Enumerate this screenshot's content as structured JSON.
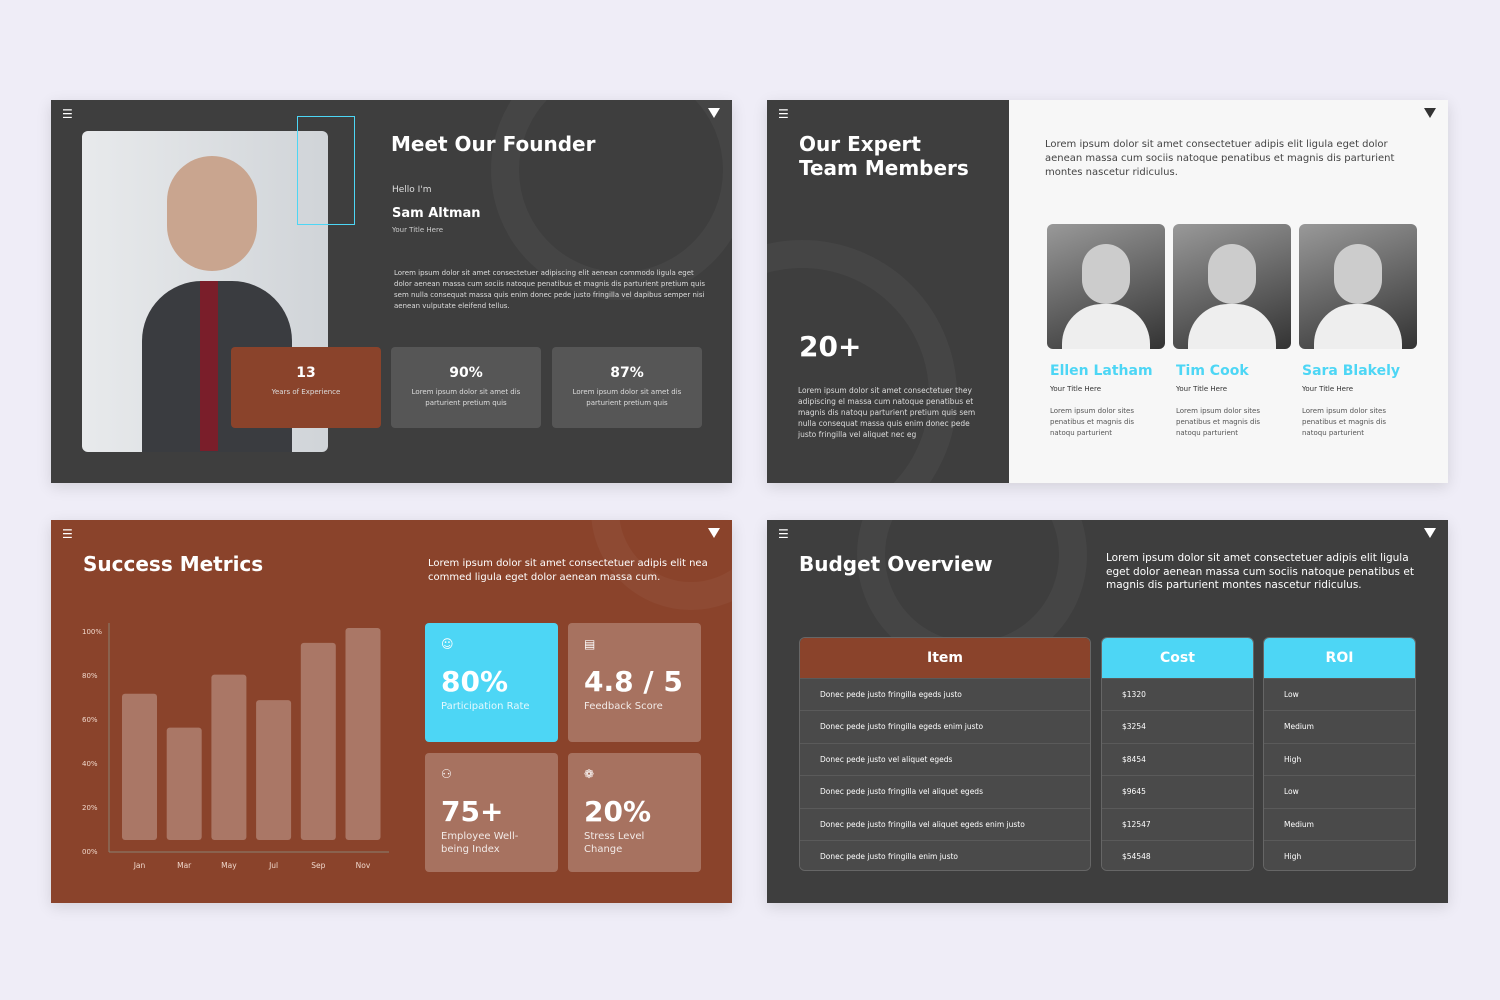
{
  "colors": {
    "dark": "#3e3e3e",
    "rust": "#8a432b",
    "accent": "#4dd6f5",
    "light": "#f7f7f7"
  },
  "founder": {
    "title": "Meet Our Founder",
    "greeting": "Hello I'm",
    "name": "Sam Altman",
    "role": "Your Title Here",
    "body": "Lorem ipsum dolor sit amet consectetuer adipiscing elit aenean commodo ligula eget dolor aenean massa cum sociis natoque penatibus et magnis dis parturient pretium quis sem nulla consequat massa quis enim donec pede justo fringilla vel dapibus semper nisi aenean vulputate eleifend tellus.",
    "stats": [
      {
        "value": "13",
        "label": "Years of Experience"
      },
      {
        "value": "90%",
        "label": "Lorem ipsum dolor sit amet dis parturient pretium quis"
      },
      {
        "value": "87%",
        "label": "Lorem ipsum dolor sit amet dis parturient pretium quis"
      }
    ]
  },
  "team": {
    "title_line1": "Our Expert",
    "title_line2": "Team Members",
    "intro": "Lorem ipsum dolor sit amet consectetuer adipis elit ligula eget dolor aenean massa cum sociis natoque penatibus et magnis dis parturient montes nascetur ridiculus.",
    "count": "20+",
    "body": "Lorem ipsum dolor sit amet consectetuer they adipiscing el massa cum  natoque penatibus et magnis dis natoqu parturient pretium quis sem nulla consequat massa quis enim donec pede justo fringilla vel  aliquet nec eg",
    "members": [
      {
        "name": "Ellen Latham",
        "role": "Your Title Here",
        "desc": "Lorem ipsum dolor sites penatibus et magnis dis natoqu parturient"
      },
      {
        "name": "Tim Cook",
        "role": "Your Title Here",
        "desc": "Lorem ipsum dolor sites penatibus et magnis dis natoqu parturient"
      },
      {
        "name": "Sara Blakely",
        "role": "Your Title Here",
        "desc": "Lorem ipsum dolor sites penatibus et magnis dis natoqu parturient"
      }
    ]
  },
  "metrics": {
    "title": "Success Metrics",
    "intro": "Lorem ipsum dolor sit amet consectetuer adipis elit nea commed ligula eget dolor aenean massa cum.",
    "tiles": [
      {
        "icon": "head-icon",
        "value": "80%",
        "label": "Participation Rate"
      },
      {
        "icon": "presentation-icon",
        "value": "4.8 / 5",
        "label": "Feedback Score"
      },
      {
        "icon": "team-icon",
        "value": "75+",
        "label": "Employee Well-being Index"
      },
      {
        "icon": "brain-icon",
        "value": "20%",
        "label": "Stress Level Change"
      }
    ]
  },
  "chart_data": {
    "type": "bar",
    "categories": [
      "Jan",
      "Mar",
      "May",
      "Jul",
      "Sep",
      "Nov"
    ],
    "values": [
      69,
      53,
      78,
      66,
      93,
      100
    ],
    "ylim": [
      0,
      100
    ],
    "yticks": [
      "00%",
      "20%",
      "40%",
      "60%",
      "80%",
      "100%"
    ],
    "grid": false
  },
  "budget": {
    "title": "Budget Overview",
    "intro": "Lorem ipsum dolor sit amet consectetuer adipis elit ligula eget dolor aenean massa cum sociis natoque penatibus et magnis dis parturient montes nascetur ridiculus.",
    "headers": [
      "Item",
      "Cost",
      "ROI"
    ],
    "rows": [
      [
        "Donec pede justo fringilla egeds justo",
        "$1320",
        "Low"
      ],
      [
        "Donec pede justo fringilla egeds enim justo",
        "$3254",
        "Medium"
      ],
      [
        "Donec pede justo vel aliquet egeds",
        "$8454",
        "High"
      ],
      [
        "Donec pede justo fringilla vel aliquet egeds",
        "$9645",
        "Low"
      ],
      [
        "Donec pede justo fringilla vel aliquet egeds enim justo",
        "$12547",
        "Medium"
      ],
      [
        "Donec pede justo fringilla enim justo",
        "$54548",
        "High"
      ]
    ]
  }
}
